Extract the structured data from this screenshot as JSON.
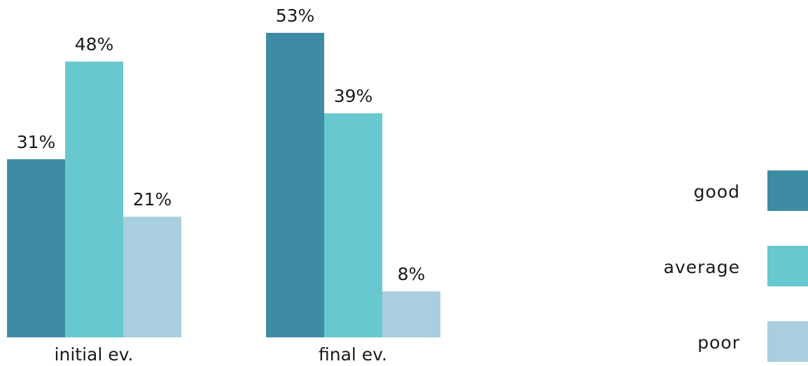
{
  "chart_data": {
    "type": "bar",
    "categories": [
      "initial ev.",
      "final ev."
    ],
    "series": [
      {
        "name": "good",
        "values": [
          31,
          53
        ],
        "labels": [
          "31%",
          "53%"
        ],
        "color": "#3e8ca3"
      },
      {
        "name": "average",
        "values": [
          48,
          39
        ],
        "labels": [
          "48%",
          "39%"
        ],
        "color": "#67c9cf"
      },
      {
        "name": "poor",
        "values": [
          21,
          8
        ],
        "labels": [
          "21%",
          "8%"
        ],
        "color": "#a9cedd"
      }
    ],
    "unit": "%",
    "ylim": [
      0,
      53
    ],
    "legend": "right",
    "grid": false,
    "axes_visible": false
  }
}
